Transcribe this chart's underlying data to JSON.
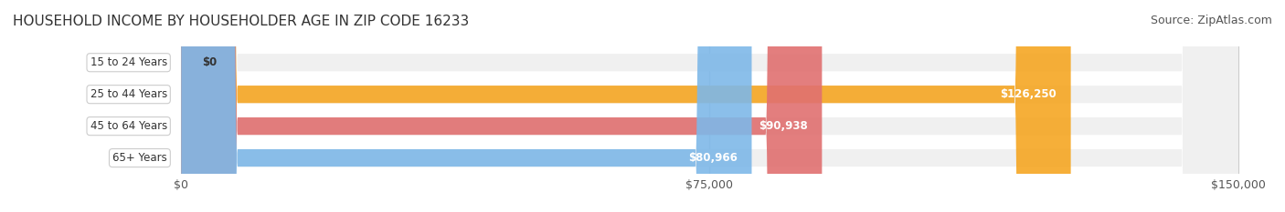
{
  "title": "HOUSEHOLD INCOME BY HOUSEHOLDER AGE IN ZIP CODE 16233",
  "source": "Source: ZipAtlas.com",
  "categories": [
    "15 to 24 Years",
    "25 to 44 Years",
    "45 to 64 Years",
    "65+ Years"
  ],
  "values": [
    0,
    126250,
    90938,
    80966
  ],
  "bar_colors": [
    "#f4a0b0",
    "#f5a623",
    "#e07070",
    "#7eb8e8"
  ],
  "bar_bg_color": "#f0f0f0",
  "x_max": 150000,
  "x_ticks": [
    0,
    75000,
    150000
  ],
  "x_tick_labels": [
    "$0",
    "$75,000",
    "$150,000"
  ],
  "value_labels": [
    "$0",
    "$126,250",
    "$90,938",
    "$80,966"
  ],
  "bg_color": "#ffffff",
  "label_bg": "#ffffff",
  "bar_height": 0.55,
  "title_fontsize": 11,
  "source_fontsize": 9,
  "tick_fontsize": 9,
  "label_fontsize": 8.5
}
